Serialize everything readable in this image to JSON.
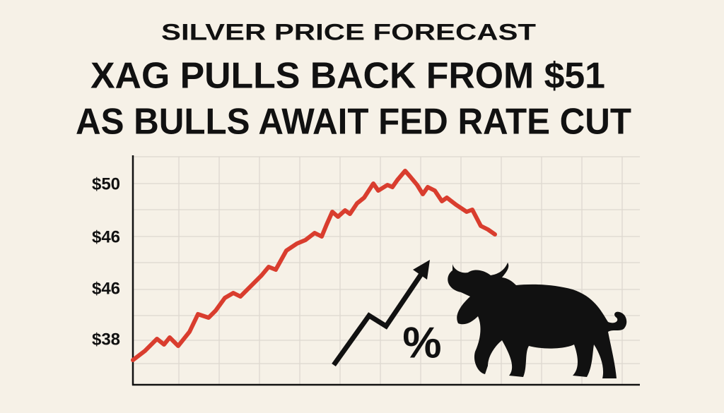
{
  "header": {
    "kicker": "SILVER PRICE FORECAST",
    "headline": [
      "XAG PULLS BACK FROM $51",
      "AS BULLS AWAIT FED RATE CUT"
    ]
  },
  "axis_labels": [
    "$50",
    "$46",
    "$46",
    "$38"
  ],
  "symbol": "%"
}
